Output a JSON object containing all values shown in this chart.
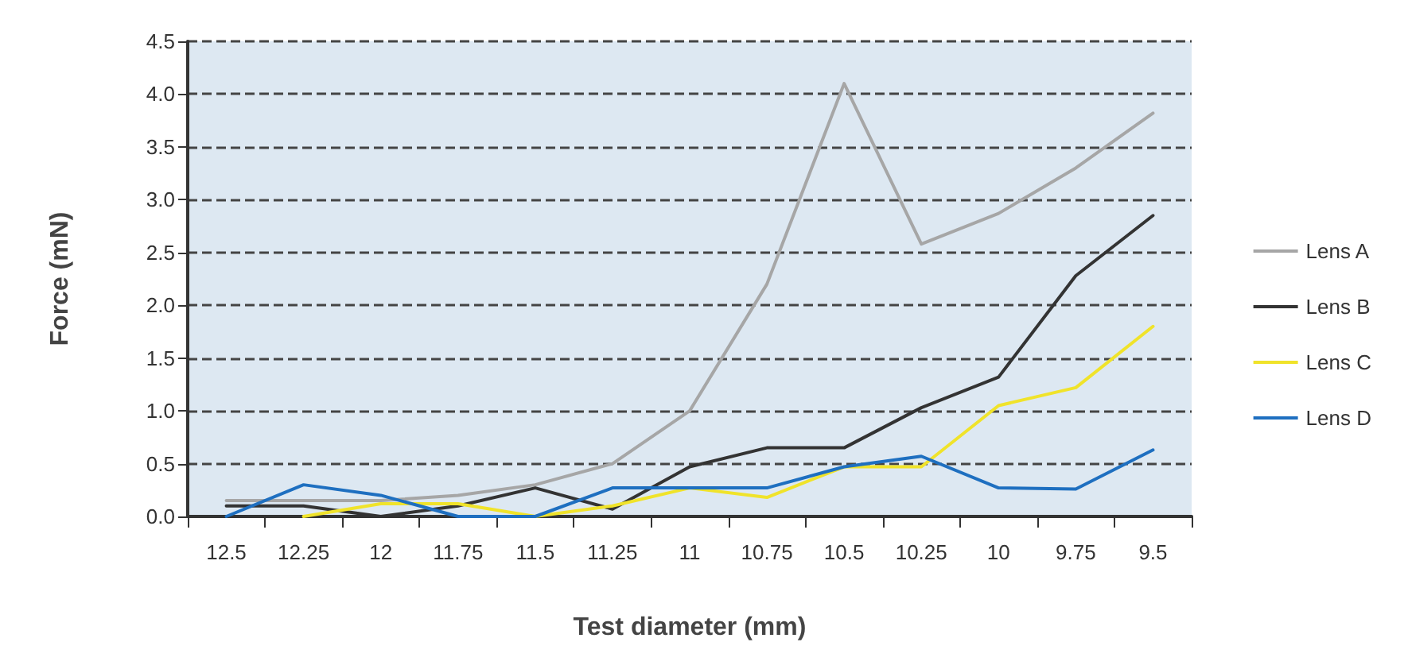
{
  "chart_data": {
    "type": "line",
    "xlabel": "Test diameter (mm)",
    "ylabel": "Force (mN)",
    "categories": [
      "12.5",
      "12.25",
      "12",
      "11.75",
      "11.5",
      "11.25",
      "11",
      "10.75",
      "10.5",
      "10.25",
      "10",
      "9.75",
      "9.5"
    ],
    "series": [
      {
        "name": "Lens A",
        "color": "#a6a6a6",
        "values": [
          0.15,
          0.15,
          0.15,
          0.2,
          0.3,
          0.5,
          1.0,
          2.2,
          4.1,
          2.58,
          2.87,
          3.3,
          3.82
        ]
      },
      {
        "name": "Lens B",
        "color": "#333333",
        "values": [
          0.1,
          0.1,
          0,
          0.1,
          0.27,
          0.07,
          0.47,
          0.65,
          0.65,
          1.03,
          1.32,
          2.28,
          2.85
        ]
      },
      {
        "name": "Lens C",
        "color": "#f0e32a",
        "values": [
          null,
          0,
          0.12,
          0.12,
          0,
          0.1,
          0.27,
          0.18,
          0.47,
          0.47,
          1.05,
          1.22,
          1.8
        ]
      },
      {
        "name": "Lens D",
        "color": "#1e6fc0",
        "values": [
          0,
          0.3,
          0.2,
          0,
          0,
          0.27,
          0.27,
          0.27,
          0.47,
          0.57,
          0.27,
          0.26,
          0.63
        ]
      }
    ],
    "ylim": [
      0,
      4.5
    ],
    "yticks": [
      {
        "value": 0,
        "label": "0.0"
      },
      0.5,
      {
        "value": 1,
        "label": "1.0"
      },
      1.5,
      {
        "value": 2,
        "label": "2.0"
      },
      2.5,
      {
        "value": 3,
        "label": "3.0"
      },
      3.5,
      {
        "value": 4,
        "label": "4.0"
      },
      4.5
    ],
    "grid": "y",
    "legend": "right",
    "marker": "none",
    "line_style": "solid"
  }
}
